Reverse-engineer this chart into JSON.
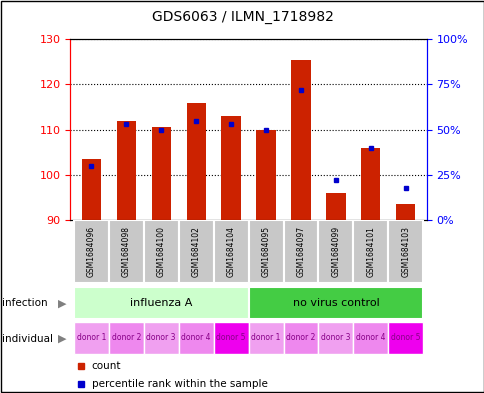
{
  "title": "GDS6063 / ILMN_1718982",
  "samples": [
    "GSM1684096",
    "GSM1684098",
    "GSM1684100",
    "GSM1684102",
    "GSM1684104",
    "GSM1684095",
    "GSM1684097",
    "GSM1684099",
    "GSM1684101",
    "GSM1684103"
  ],
  "counts": [
    103.5,
    112.0,
    110.5,
    116.0,
    113.0,
    110.0,
    125.5,
    96.0,
    106.0,
    93.5
  ],
  "percentiles": [
    30,
    53,
    50,
    55,
    53,
    50,
    72,
    22,
    40,
    18
  ],
  "ylim_left": [
    90,
    130
  ],
  "ylim_right": [
    0,
    100
  ],
  "yticks_left": [
    90,
    100,
    110,
    120,
    130
  ],
  "yticks_right": [
    0,
    25,
    50,
    75,
    100
  ],
  "ytick_labels_right": [
    "0%",
    "25%",
    "50%",
    "75%",
    "100%"
  ],
  "infection_groups": [
    {
      "label": "influenza A",
      "start": 0,
      "end": 5,
      "color": "#ccffcc"
    },
    {
      "label": "no virus control",
      "start": 5,
      "end": 10,
      "color": "#44cc44"
    }
  ],
  "individual_labels": [
    "donor 1",
    "donor 2",
    "donor 3",
    "donor 4",
    "donor 5",
    "donor 1",
    "donor 2",
    "donor 3",
    "donor 4",
    "donor 5"
  ],
  "individual_colors": [
    "#f0a0f0",
    "#ee88ee",
    "#f0a0f0",
    "#ee88ee",
    "#ee00ee",
    "#f0a0f0",
    "#ee88ee",
    "#f0a0f0",
    "#ee88ee",
    "#ee00ee"
  ],
  "bar_color": "#cc2200",
  "dot_color": "#0000cc",
  "bar_width": 0.55,
  "base_value": 90
}
